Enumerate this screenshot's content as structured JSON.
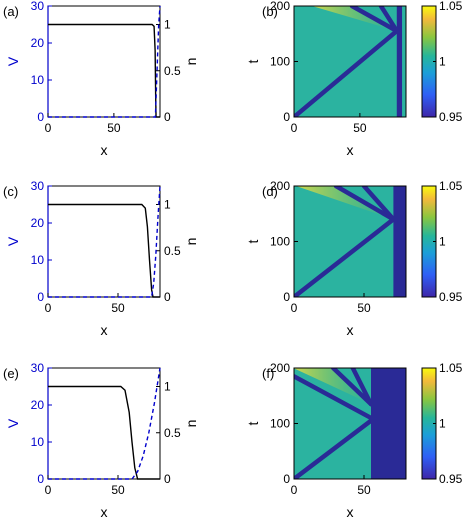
{
  "colors": {
    "left_axis": "#0000cc",
    "v_line": "#000000",
    "n_line": "#0000cc",
    "field_base": "#2bb3a0",
    "wall": "#2a2a96"
  },
  "chart_data": [
    {
      "type": "line",
      "panel_label": "(a)",
      "xlabel": "x",
      "ylabel_left": "V",
      "ylabel_right": "n",
      "xlim": [
        0,
        85
      ],
      "xticks": [
        "0",
        "50"
      ],
      "ylim_left": [
        0,
        30
      ],
      "yticks_left": [
        "0",
        "10",
        "20",
        "30"
      ],
      "ylim_right": [
        0,
        1.2
      ],
      "yticks_right": [
        "0",
        "0.5",
        "1"
      ],
      "series": [
        {
          "axis": "left",
          "style": "solid",
          "x": [
            0,
            79,
            80.5,
            81.3,
            81.7,
            82,
            85
          ],
          "y": [
            25,
            25,
            24.5,
            18,
            6,
            0,
            0
          ]
        },
        {
          "axis": "right",
          "style": "dashed",
          "x": [
            0,
            81.5,
            82,
            83,
            84,
            85
          ],
          "y": [
            0,
            0,
            0.2,
            0.6,
            1.0,
            1.2
          ]
        }
      ]
    },
    {
      "type": "heatmap",
      "panel_label": "(b)",
      "xlabel": "x",
      "ylabel": "t",
      "xlim": [
        0,
        85
      ],
      "xticks": [
        "0",
        "50"
      ],
      "ylim": [
        0,
        200
      ],
      "yticks": [
        "0",
        "100",
        "200"
      ],
      "clim": [
        0.95,
        1.05
      ],
      "colorbar_ticks": [
        "0.95",
        "1",
        "1.05"
      ],
      "wall_x": [
        78,
        82
      ],
      "waves": [
        {
          "x": [
            0,
            78
          ],
          "t": [
            0,
            155
          ]
        },
        {
          "x": [
            78,
            44
          ],
          "t": [
            155,
            200
          ]
        },
        {
          "x": [
            78,
            66
          ],
          "t": [
            155,
            200
          ]
        }
      ]
    },
    {
      "type": "line",
      "panel_label": "(c)",
      "xlabel": "x",
      "ylabel_left": "V",
      "ylabel_right": "n",
      "xlim": [
        0,
        80
      ],
      "xticks": [
        "0",
        "50"
      ],
      "ylim_left": [
        0,
        30
      ],
      "yticks_left": [
        "0",
        "10",
        "20",
        "30"
      ],
      "ylim_right": [
        0,
        1.2
      ],
      "yticks_right": [
        "0",
        "0.5",
        "1"
      ],
      "series": [
        {
          "axis": "left",
          "style": "solid",
          "x": [
            0,
            67,
            69.5,
            71,
            72.5,
            74,
            75,
            80
          ],
          "y": [
            25,
            25,
            24,
            19,
            10,
            2,
            0,
            0
          ]
        },
        {
          "axis": "right",
          "style": "dashed",
          "x": [
            0,
            74,
            75.5,
            77,
            78.5,
            80
          ],
          "y": [
            0,
            0,
            0.15,
            0.45,
            0.85,
            1.2
          ]
        }
      ]
    },
    {
      "type": "heatmap",
      "panel_label": "(d)",
      "xlabel": "x",
      "ylabel": "t",
      "xlim": [
        0,
        80
      ],
      "xticks": [
        "0",
        "50"
      ],
      "ylim": [
        0,
        200
      ],
      "yticks": [
        "0",
        "100",
        "200"
      ],
      "clim": [
        0.95,
        1.05
      ],
      "colorbar_ticks": [
        "0.95",
        "1",
        "1.05"
      ],
      "wall_x": [
        71,
        80
      ],
      "waves": [
        {
          "x": [
            0,
            71
          ],
          "t": [
            0,
            140
          ]
        },
        {
          "x": [
            71,
            30
          ],
          "t": [
            140,
            200
          ]
        },
        {
          "x": [
            71,
            50
          ],
          "t": [
            140,
            200
          ]
        }
      ]
    },
    {
      "type": "line",
      "panel_label": "(e)",
      "xlabel": "x",
      "ylabel_left": "V",
      "ylabel_right": "n",
      "xlim": [
        0,
        80
      ],
      "xticks": [
        "0",
        "50"
      ],
      "ylim_left": [
        0,
        30
      ],
      "yticks_left": [
        "0",
        "10",
        "20",
        "30"
      ],
      "ylim_right": [
        0,
        1.2
      ],
      "yticks_right": [
        "0",
        "0.5",
        "1"
      ],
      "series": [
        {
          "axis": "left",
          "style": "solid",
          "x": [
            0,
            52,
            55,
            58,
            60,
            62,
            64,
            80
          ],
          "y": [
            25,
            25,
            24,
            18,
            10,
            3,
            0,
            0
          ]
        },
        {
          "axis": "right",
          "style": "dashed",
          "x": [
            0,
            60,
            64,
            68,
            72,
            76,
            80
          ],
          "y": [
            0,
            0,
            0.08,
            0.25,
            0.5,
            0.82,
            1.2
          ]
        }
      ]
    },
    {
      "type": "heatmap",
      "panel_label": "(f)",
      "xlabel": "x",
      "ylabel": "t",
      "xlim": [
        0,
        80
      ],
      "xticks": [
        "0",
        "50"
      ],
      "ylim": [
        0,
        200
      ],
      "yticks": [
        "0",
        "100",
        "200"
      ],
      "clim": [
        0.95,
        1.05
      ],
      "colorbar_ticks": [
        "0.95",
        "1",
        "1.05"
      ],
      "wall_x": [
        55,
        80
      ],
      "waves": [
        {
          "x": [
            0,
            55
          ],
          "t": [
            0,
            105
          ]
        },
        {
          "x": [
            55,
            0
          ],
          "t": [
            110,
            185
          ]
        },
        {
          "x": [
            55,
            28
          ],
          "t": [
            135,
            200
          ]
        },
        {
          "x": [
            55,
            42
          ],
          "t": [
            135,
            200
          ]
        }
      ]
    }
  ]
}
